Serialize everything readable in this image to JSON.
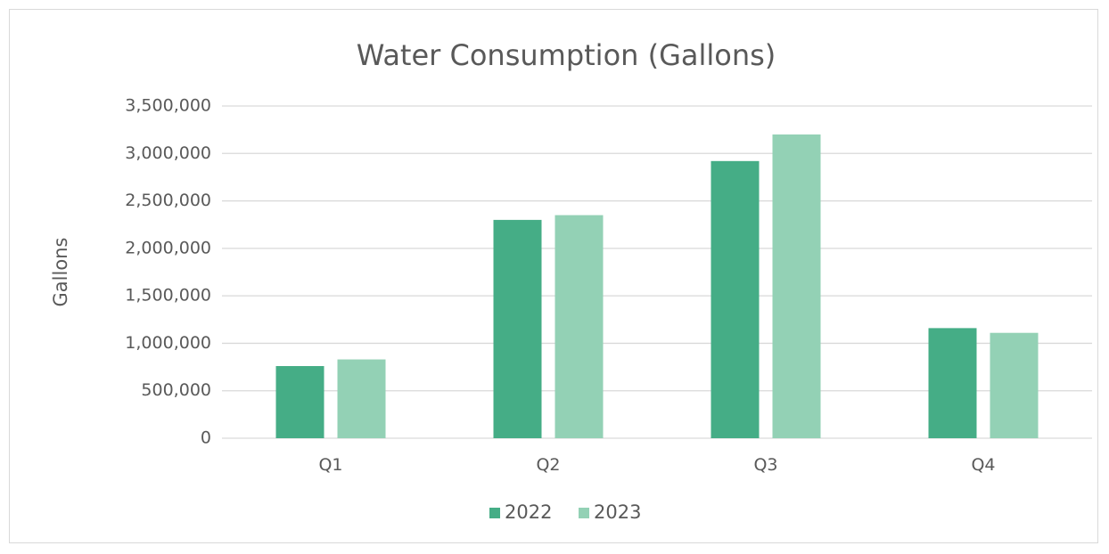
{
  "chart_data": {
    "type": "bar",
    "title": "Water Consumption (Gallons)",
    "xlabel": "",
    "ylabel": "Gallons",
    "categories": [
      "Q1",
      "Q2",
      "Q3",
      "Q4"
    ],
    "series": [
      {
        "name": "2022",
        "color": "#45ad86",
        "values": [
          760000,
          2300000,
          2920000,
          1160000
        ]
      },
      {
        "name": "2023",
        "color": "#93d1b5",
        "values": [
          830000,
          2350000,
          3200000,
          1110000
        ]
      }
    ],
    "ylim": [
      0,
      3500000
    ],
    "yticks": [
      0,
      500000,
      1000000,
      1500000,
      2000000,
      2500000,
      3000000,
      3500000
    ],
    "ytick_labels": [
      "0",
      "500,000",
      "1,000,000",
      "1,500,000",
      "2,000,000",
      "2,500,000",
      "3,000,000",
      "3,500,000"
    ],
    "grid": true,
    "legend_position": "bottom-center"
  }
}
